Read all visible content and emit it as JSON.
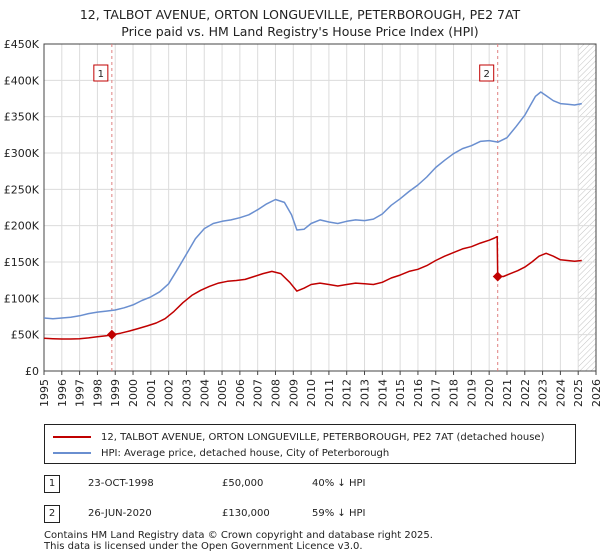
{
  "title_line1": "12, TALBOT AVENUE, ORTON LONGUEVILLE, PETERBOROUGH, PE2 7AT",
  "title_line2": "Price paid vs. HM Land Registry's House Price Index (HPI)",
  "colors": {
    "property": "#c00000",
    "hpi": "#6a8fd0",
    "vline": "#e08080",
    "hatch": "#9a9a9a"
  },
  "chart_data": {
    "type": "line",
    "title": "12, TALBOT AVENUE, ORTON LONGUEVILLE, PETERBOROUGH, PE2 7AT — Price paid vs. HM Land Registry's House Price Index (HPI)",
    "xlim": [
      1995,
      2026
    ],
    "ylim": [
      0,
      450000
    ],
    "x_ticks": [
      "1995",
      "1996",
      "1997",
      "1998",
      "1999",
      "2000",
      "2001",
      "2002",
      "2003",
      "2004",
      "2005",
      "2006",
      "2007",
      "2008",
      "2009",
      "2010",
      "2011",
      "2012",
      "2013",
      "2014",
      "2015",
      "2016",
      "2017",
      "2018",
      "2019",
      "2020",
      "2021",
      "2022",
      "2023",
      "2024",
      "2025",
      "2026"
    ],
    "y_ticks": [
      {
        "value": 0,
        "label": "£0"
      },
      {
        "value": 50000,
        "label": "£50K"
      },
      {
        "value": 100000,
        "label": "£100K"
      },
      {
        "value": 150000,
        "label": "£150K"
      },
      {
        "value": 200000,
        "label": "£200K"
      },
      {
        "value": 250000,
        "label": "£250K"
      },
      {
        "value": 300000,
        "label": "£300K"
      },
      {
        "value": 350000,
        "label": "£350K"
      },
      {
        "value": 400000,
        "label": "£400K"
      },
      {
        "value": 450000,
        "label": "£450K"
      }
    ],
    "grid": true,
    "future_hatch_from": 2025.0,
    "series": [
      {
        "name": "12, TALBOT AVENUE, ORTON LONGUEVILLE, PETERBOROUGH, PE2 7AT (detached house)",
        "color": "#c00000",
        "x": [
          1995.0,
          1995.5,
          1996.0,
          1996.5,
          1997.0,
          1997.5,
          1998.0,
          1998.5,
          1998.81,
          1999.3,
          1999.8,
          2000.3,
          2000.8,
          2001.3,
          2001.8,
          2002.3,
          2002.8,
          2003.3,
          2003.8,
          2004.3,
          2004.8,
          2005.3,
          2005.8,
          2006.3,
          2006.8,
          2007.3,
          2007.8,
          2008.3,
          2008.8,
          2009.2,
          2009.6,
          2010.0,
          2010.5,
          2011.0,
          2011.5,
          2012.0,
          2012.5,
          2013.0,
          2013.5,
          2014.0,
          2014.5,
          2015.0,
          2015.5,
          2016.0,
          2016.5,
          2017.0,
          2017.5,
          2018.0,
          2018.5,
          2019.0,
          2019.5,
          2020.0,
          2020.3,
          2020.45,
          2020.48,
          2020.8,
          2021.2,
          2021.6,
          2022.0,
          2022.4,
          2022.8,
          2023.2,
          2023.6,
          2024.0,
          2024.4,
          2024.8,
          2025.2
        ],
        "y": [
          45000,
          44500,
          44000,
          44000,
          44500,
          45500,
          47000,
          48500,
          50000,
          52000,
          55000,
          58500,
          62000,
          66000,
          72000,
          82000,
          94000,
          104000,
          111000,
          116500,
          121000,
          123500,
          124500,
          126000,
          130000,
          134000,
          137000,
          134000,
          122000,
          110000,
          114000,
          119000,
          121000,
          119000,
          117000,
          119000,
          121000,
          120000,
          119000,
          122000,
          128000,
          132000,
          137000,
          140000,
          145000,
          152000,
          158000,
          163000,
          168000,
          171000,
          176000,
          180000,
          183000,
          185000,
          130000,
          130000,
          134000,
          138000,
          143000,
          150000,
          158000,
          162000,
          158000,
          153000,
          152000,
          151000,
          152000
        ]
      },
      {
        "name": "HPI: Average price, detached house, City of Peterborough",
        "color": "#6a8fd0",
        "x": [
          1995.0,
          1995.5,
          1996.0,
          1996.5,
          1997.0,
          1997.5,
          1998.0,
          1998.5,
          1999.0,
          1999.5,
          2000.0,
          2000.5,
          2001.0,
          2001.5,
          2002.0,
          2002.5,
          2003.0,
          2003.5,
          2004.0,
          2004.5,
          2005.0,
          2005.5,
          2006.0,
          2006.5,
          2007.0,
          2007.5,
          2008.0,
          2008.5,
          2008.9,
          2009.2,
          2009.6,
          2010.0,
          2010.5,
          2011.0,
          2011.5,
          2012.0,
          2012.5,
          2013.0,
          2013.5,
          2014.0,
          2014.5,
          2015.0,
          2015.5,
          2016.0,
          2016.5,
          2017.0,
          2017.5,
          2018.0,
          2018.5,
          2019.0,
          2019.5,
          2020.0,
          2020.5,
          2021.0,
          2021.5,
          2022.0,
          2022.3,
          2022.6,
          2022.9,
          2023.2,
          2023.6,
          2024.0,
          2024.4,
          2024.8,
          2025.2
        ],
        "y": [
          73000,
          72000,
          73000,
          74000,
          76000,
          79000,
          81000,
          82500,
          84000,
          87000,
          91000,
          97000,
          102000,
          109000,
          120000,
          140000,
          161000,
          182000,
          196000,
          203000,
          206000,
          208000,
          211000,
          215000,
          222000,
          230000,
          236000,
          232000,
          215000,
          194000,
          195000,
          203000,
          208000,
          205000,
          203000,
          206000,
          208000,
          207000,
          209000,
          216000,
          228000,
          237000,
          247000,
          256000,
          267000,
          280000,
          290000,
          299000,
          306000,
          310000,
          316000,
          317000,
          315000,
          321000,
          336000,
          352000,
          365000,
          378000,
          384000,
          379000,
          372000,
          368000,
          367000,
          366000,
          368000
        ]
      }
    ],
    "sale_markers": [
      {
        "id": "1",
        "x": 1998.81,
        "y": 50000
      },
      {
        "id": "2",
        "x": 2020.48,
        "y": 130000
      }
    ]
  },
  "legend": {
    "property_label": "12, TALBOT AVENUE, ORTON LONGUEVILLE, PETERBOROUGH, PE2 7AT (detached house)",
    "hpi_label": "HPI: Average price, detached house, City of Peterborough"
  },
  "sales": [
    {
      "id": "1",
      "date": "23-OCT-1998",
      "price": "£50,000",
      "hpi_change": "40% ↓ HPI"
    },
    {
      "id": "2",
      "date": "26-JUN-2020",
      "price": "£130,000",
      "hpi_change": "59% ↓ HPI"
    }
  ],
  "footer": {
    "line1": "Contains HM Land Registry data © Crown copyright and database right 2025.",
    "line2": "This data is licensed under the Open Government Licence v3.0."
  }
}
